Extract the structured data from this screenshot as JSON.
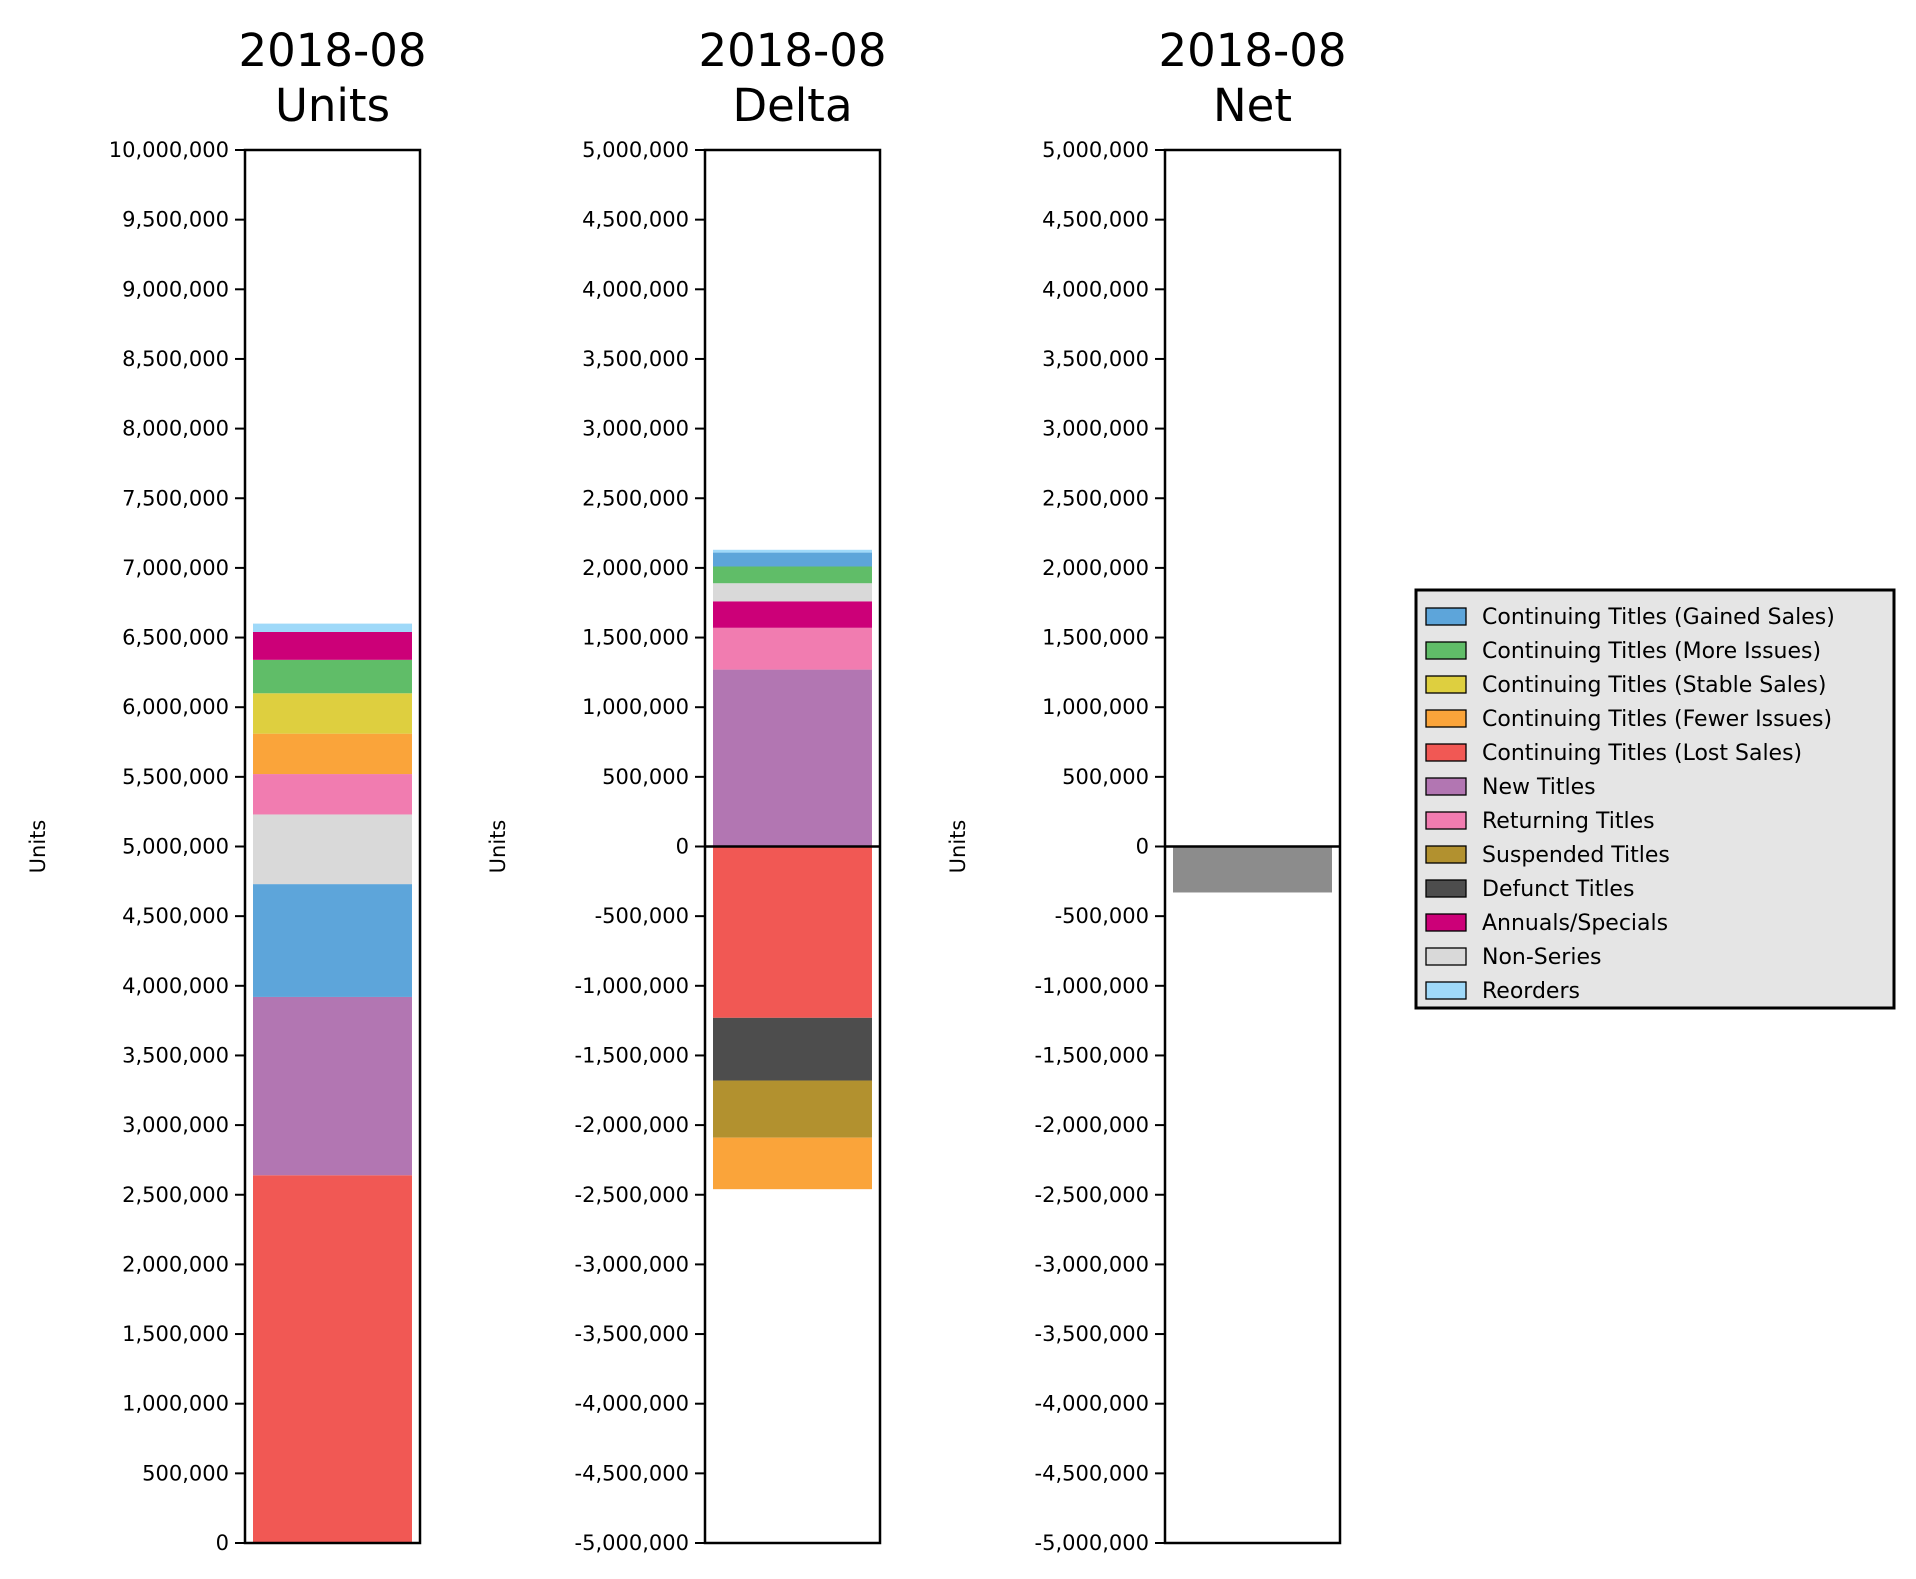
{
  "colors": {
    "Continuing Titles (Gained Sales)": "#5da5da",
    "Continuing Titles (More Issues)": "#60bd68",
    "Continuing Titles (Stable Sales)": "#decf3f",
    "Continuing Titles (Fewer Issues)": "#faa43a",
    "Continuing Titles (Lost Sales)": "#f15854",
    "New Titles": "#b276b2",
    "Returning Titles": "#f17cb0",
    "Suspended Titles": "#b2912f",
    "Defunct Titles": "#4d4d4d",
    "Annuals/Specials": "#cc0078",
    "Non-Series": "#d9d9d9",
    "Reorders": "#9fd9f9",
    "Net": "#8c8c8c"
  },
  "legend": {
    "items": [
      "Continuing Titles (Gained Sales)",
      "Continuing Titles (More Issues)",
      "Continuing Titles (Stable Sales)",
      "Continuing Titles (Fewer Issues)",
      "Continuing Titles (Lost Sales)",
      "New Titles",
      "Returning Titles",
      "Suspended Titles",
      "Defunct Titles",
      "Annuals/Specials",
      "Non-Series",
      "Reorders"
    ],
    "placement": "right"
  },
  "chart_data": [
    {
      "type": "bar",
      "stacked": true,
      "title": "2018-08\nUnits",
      "ylabel": "Units",
      "ylim": [
        0,
        10000000
      ],
      "yticks": [
        0,
        500000,
        1000000,
        1500000,
        2000000,
        2500000,
        3000000,
        3500000,
        4000000,
        4500000,
        5000000,
        5500000,
        6000000,
        6500000,
        7000000,
        7500000,
        8000000,
        8500000,
        9000000,
        9500000,
        10000000
      ],
      "tick_labels": [
        "0",
        "500,000",
        "1,000,000",
        "1,500,000",
        "2,000,000",
        "2,500,000",
        "3,000,000",
        "3,500,000",
        "4,000,000",
        "4,500,000",
        "5,000,000",
        "5,500,000",
        "6,000,000",
        "6,500,000",
        "7,000,000",
        "7,500,000",
        "8,000,000",
        "8,500,000",
        "9,000,000",
        "9,500,000",
        "10,000,000"
      ],
      "segments": [
        {
          "name": "Continuing Titles (Lost Sales)",
          "start": 0,
          "value": 2640000
        },
        {
          "name": "New Titles",
          "start": 2640000,
          "value": 1280000
        },
        {
          "name": "Continuing Titles (Gained Sales)",
          "start": 3920000,
          "value": 810000
        },
        {
          "name": "Non-Series",
          "start": 4730000,
          "value": 500000
        },
        {
          "name": "Returning Titles",
          "start": 5230000,
          "value": 290000
        },
        {
          "name": "Continuing Titles (Fewer Issues)",
          "start": 5520000,
          "value": 290000
        },
        {
          "name": "Continuing Titles (Stable Sales)",
          "start": 5810000,
          "value": 290000
        },
        {
          "name": "Continuing Titles (More Issues)",
          "start": 6100000,
          "value": 240000
        },
        {
          "name": "Annuals/Specials",
          "start": 6340000,
          "value": 200000
        },
        {
          "name": "Reorders",
          "start": 6540000,
          "value": 60000
        }
      ]
    },
    {
      "type": "bar",
      "stacked": true,
      "title": "2018-08\nDelta",
      "ylabel": "Units",
      "ylim": [
        -5000000,
        5000000
      ],
      "yticks": [
        -5000000,
        -4500000,
        -4000000,
        -3500000,
        -3000000,
        -2500000,
        -2000000,
        -1500000,
        -1000000,
        -500000,
        0,
        500000,
        1000000,
        1500000,
        2000000,
        2500000,
        3000000,
        3500000,
        4000000,
        4500000,
        5000000
      ],
      "tick_labels": [
        "-5,000,000",
        "-4,500,000",
        "-4,000,000",
        "-3,500,000",
        "-3,000,000",
        "-2,500,000",
        "-2,000,000",
        "-1,500,000",
        "-1,000,000",
        "-500,000",
        "0",
        "500,000",
        "1,000,000",
        "1,500,000",
        "2,000,000",
        "2,500,000",
        "3,000,000",
        "3,500,000",
        "4,000,000",
        "4,500,000",
        "5,000,000"
      ],
      "zero_line": true,
      "segments": [
        {
          "name": "New Titles",
          "start": 0,
          "value": 1270000
        },
        {
          "name": "Returning Titles",
          "start": 1270000,
          "value": 300000
        },
        {
          "name": "Annuals/Specials",
          "start": 1570000,
          "value": 190000
        },
        {
          "name": "Non-Series",
          "start": 1760000,
          "value": 130000
        },
        {
          "name": "Continuing Titles (More Issues)",
          "start": 1890000,
          "value": 120000
        },
        {
          "name": "Continuing Titles (Gained Sales)",
          "start": 2010000,
          "value": 100000
        },
        {
          "name": "Reorders",
          "start": 2110000,
          "value": 20000
        },
        {
          "name": "Continuing Titles (Lost Sales)",
          "start": 0,
          "value": -1230000
        },
        {
          "name": "Defunct Titles",
          "start": -1230000,
          "value": -450000
        },
        {
          "name": "Suspended Titles",
          "start": -1680000,
          "value": -410000
        },
        {
          "name": "Continuing Titles (Fewer Issues)",
          "start": -2090000,
          "value": -370000
        }
      ]
    },
    {
      "type": "bar",
      "title": "2018-08\nNet",
      "ylabel": "Units",
      "ylim": [
        -5000000,
        5000000
      ],
      "yticks": [
        -5000000,
        -4500000,
        -4000000,
        -3500000,
        -3000000,
        -2500000,
        -2000000,
        -1500000,
        -1000000,
        -500000,
        0,
        500000,
        1000000,
        1500000,
        2000000,
        2500000,
        3000000,
        3500000,
        4000000,
        4500000,
        5000000
      ],
      "tick_labels": [
        "-5,000,000",
        "-4,500,000",
        "-4,000,000",
        "-3,500,000",
        "-3,000,000",
        "-2,500,000",
        "-2,000,000",
        "-1,500,000",
        "-1,000,000",
        "-500,000",
        "0",
        "500,000",
        "1,000,000",
        "1,500,000",
        "2,000,000",
        "2,500,000",
        "3,000,000",
        "3,500,000",
        "4,000,000",
        "4,500,000",
        "5,000,000"
      ],
      "zero_line": true,
      "segments": [
        {
          "name": "Net",
          "start": 0,
          "value": -330000
        }
      ]
    }
  ]
}
